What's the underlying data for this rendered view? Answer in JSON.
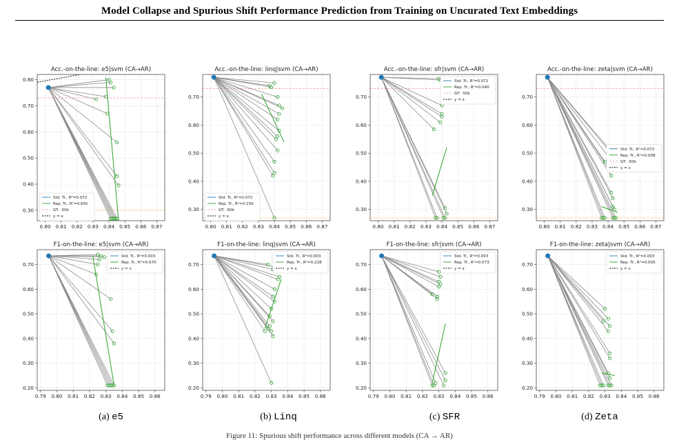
{
  "header": {
    "title": "Model Collapse and Spurious Shift Performance Prediction from Training on Uncurated Text Embeddings"
  },
  "figure": {
    "captions": [
      {
        "label": "(a)",
        "model": "e5"
      },
      {
        "label": "(b)",
        "model": "Linq"
      },
      {
        "label": "(c)",
        "model": "SFR"
      },
      {
        "label": "(d)",
        "model": "Zeta"
      }
    ],
    "figure_caption": "Figure 11: Spurious shift performance across different models (CA → AR)"
  },
  "colors": {
    "std": "#1f77b4",
    "rep": "#2ca02c",
    "gt": "#f4a6a6",
    "gt2": "#fbd6a8",
    "line": "#8c8c8c"
  },
  "chart_data": [
    {
      "type": "line",
      "title": "Acc.-on-the-line: e5|svm  (CA→AR)",
      "xlim": [
        0.795,
        0.875
      ],
      "ylim": [
        0.26,
        0.82
      ],
      "xticks": [
        "0.80",
        "0.81",
        "0.82",
        "0.83",
        "0.84",
        "0.85",
        "0.86",
        "0.87"
      ],
      "yticks": [
        "0.30",
        "0.40",
        "0.50",
        "0.60",
        "0.70",
        "0.80"
      ],
      "legend": [
        "Std. Tr., R²=0.072",
        "Rep. Tr., R²=0.691",
        "GT: -50k",
        "y = x"
      ],
      "legend_pos": "bottom-left",
      "gt": 0.73,
      "gt2": 0.3,
      "origin": [
        0.802,
        0.77
      ],
      "ends": [
        [
          0.84,
          0.8
        ],
        [
          0.841,
          0.79
        ],
        [
          0.843,
          0.77
        ],
        [
          0.832,
          0.725
        ],
        [
          0.838,
          0.735
        ],
        [
          0.839,
          0.67
        ],
        [
          0.845,
          0.56
        ],
        [
          0.845,
          0.43
        ],
        [
          0.846,
          0.395
        ],
        [
          0.842,
          0.268
        ],
        [
          0.843,
          0.268
        ],
        [
          0.844,
          0.268
        ],
        [
          0.845,
          0.268
        ],
        [
          0.843,
          0.268
        ],
        [
          0.842,
          0.268
        ],
        [
          0.841,
          0.268
        ],
        [
          0.844,
          0.268
        ],
        [
          0.845,
          0.268
        ]
      ],
      "rep": [
        [
          0.838,
          0.81
        ],
        [
          0.846,
          0.26
        ]
      ],
      "yx": [
        [
          0.795,
          0.79
        ],
        [
          0.84,
          0.84
        ]
      ]
    },
    {
      "type": "line",
      "title": "Acc.-on-the-line: linq|svm  (CA→AR)",
      "xlim": [
        0.795,
        0.875
      ],
      "ylim": [
        0.26,
        0.78
      ],
      "xticks": [
        "0.80",
        "0.81",
        "0.82",
        "0.83",
        "0.84",
        "0.85",
        "0.86",
        "0.87"
      ],
      "yticks": [
        "0.30",
        "0.40",
        "0.50",
        "0.60",
        "0.70"
      ],
      "legend": [
        "Std. Tr., R²=0.072",
        "Rep. Tr., R²=0.150",
        "GT: -50k",
        "y = x"
      ],
      "legend_pos": "bottom-left",
      "gt": 0.73,
      "gt2": 0.27,
      "origin": [
        0.802,
        0.77
      ],
      "ends": [
        [
          0.837,
          0.74
        ],
        [
          0.838,
          0.735
        ],
        [
          0.84,
          0.75
        ],
        [
          0.842,
          0.7
        ],
        [
          0.843,
          0.67
        ],
        [
          0.845,
          0.66
        ],
        [
          0.843,
          0.64
        ],
        [
          0.842,
          0.62
        ],
        [
          0.843,
          0.58
        ],
        [
          0.842,
          0.56
        ],
        [
          0.841,
          0.55
        ],
        [
          0.842,
          0.51
        ],
        [
          0.84,
          0.47
        ],
        [
          0.84,
          0.43
        ],
        [
          0.839,
          0.42
        ],
        [
          0.84,
          0.27
        ]
      ],
      "rep": [
        [
          0.832,
          0.71
        ],
        [
          0.846,
          0.54
        ]
      ]
    },
    {
      "type": "line",
      "title": "Acc.-on-the-line: sfr|svm  (CA→AR)",
      "xlim": [
        0.795,
        0.875
      ],
      "ylim": [
        0.26,
        0.78
      ],
      "xticks": [
        "0.80",
        "0.81",
        "0.82",
        "0.83",
        "0.84",
        "0.85",
        "0.86",
        "0.87"
      ],
      "yticks": [
        "0.30",
        "0.40",
        "0.50",
        "0.60",
        "0.70"
      ],
      "legend": [
        "Std. Tr., R²=0.072",
        "Rep. Tr., R²=0.040",
        "GT: -50k",
        "y = x"
      ],
      "legend_pos": "top-right",
      "gt": 0.73,
      "gt2": 0.27,
      "origin": [
        0.802,
        0.77
      ],
      "ends": [
        [
          0.838,
          0.765
        ],
        [
          0.839,
          0.76
        ],
        [
          0.84,
          0.67
        ],
        [
          0.84,
          0.64
        ],
        [
          0.84,
          0.63
        ],
        [
          0.839,
          0.61
        ],
        [
          0.835,
          0.585
        ],
        [
          0.842,
          0.305
        ],
        [
          0.843,
          0.285
        ],
        [
          0.842,
          0.27
        ],
        [
          0.841,
          0.27
        ],
        [
          0.836,
          0.27
        ],
        [
          0.837,
          0.27
        ]
      ],
      "rep": [
        [
          0.834,
          0.35
        ],
        [
          0.843,
          0.52
        ]
      ]
    },
    {
      "type": "line",
      "title": "Acc.-on-the-line: zeta|svm  (CA→AR)",
      "xlim": [
        0.795,
        0.875
      ],
      "ylim": [
        0.26,
        0.78
      ],
      "xticks": [
        "0.80",
        "0.81",
        "0.82",
        "0.83",
        "0.84",
        "0.85",
        "0.86",
        "0.87"
      ],
      "yticks": [
        "0.30",
        "0.40",
        "0.50",
        "0.60",
        "0.70"
      ],
      "legend": [
        "Std. Tr., R²=0.072",
        "Rep. Tr., R²=0.008",
        "GT: -50k",
        "y = x"
      ],
      "legend_pos": "middle-right",
      "gt": 0.73,
      "gt2": 0.27,
      "origin": [
        0.802,
        0.77
      ],
      "ends": [
        [
          0.84,
          0.52
        ],
        [
          0.842,
          0.5
        ],
        [
          0.838,
          0.47
        ],
        [
          0.842,
          0.475
        ],
        [
          0.841,
          0.44
        ],
        [
          0.842,
          0.42
        ],
        [
          0.842,
          0.36
        ],
        [
          0.843,
          0.34
        ],
        [
          0.843,
          0.31
        ],
        [
          0.844,
          0.3
        ],
        [
          0.843,
          0.27
        ],
        [
          0.844,
          0.27
        ],
        [
          0.845,
          0.27
        ],
        [
          0.837,
          0.27
        ],
        [
          0.838,
          0.27
        ],
        [
          0.836,
          0.27
        ]
      ],
      "rep": [
        [
          0.836,
          0.31
        ],
        [
          0.846,
          0.29
        ]
      ]
    },
    {
      "type": "line",
      "title": "F1-on-the-line: e5|svm  (CA→AR)",
      "xlim": [
        0.788,
        0.866
      ],
      "ylim": [
        0.19,
        0.76
      ],
      "xticks": [
        "0.79",
        "0.80",
        "0.81",
        "0.82",
        "0.83",
        "0.84",
        "0.85",
        "0.86"
      ],
      "yticks": [
        "0.20",
        "0.30",
        "0.40",
        "0.50",
        "0.60",
        "0.70"
      ],
      "legend": [
        "Std. Tr., R²=0.003",
        "Rep. Tr., R²=0.670",
        "y = x"
      ],
      "legend_pos": "top-right",
      "origin": [
        0.795,
        0.735
      ],
      "ends": [
        [
          0.825,
          0.74
        ],
        [
          0.827,
          0.735
        ],
        [
          0.829,
          0.73
        ],
        [
          0.826,
          0.72
        ],
        [
          0.825,
          0.7
        ],
        [
          0.824,
          0.66
        ],
        [
          0.833,
          0.56
        ],
        [
          0.834,
          0.43
        ],
        [
          0.835,
          0.38
        ],
        [
          0.832,
          0.21
        ],
        [
          0.833,
          0.21
        ],
        [
          0.834,
          0.21
        ],
        [
          0.835,
          0.21
        ],
        [
          0.831,
          0.21
        ]
      ],
      "rep": [
        [
          0.822,
          0.735
        ],
        [
          0.835,
          0.21
        ]
      ]
    },
    {
      "type": "line",
      "title": "F1-on-the-line: linq|svm  (CA→AR)",
      "xlim": [
        0.788,
        0.866
      ],
      "ylim": [
        0.19,
        0.76
      ],
      "xticks": [
        "0.79",
        "0.80",
        "0.81",
        "0.82",
        "0.83",
        "0.84",
        "0.85",
        "0.86"
      ],
      "yticks": [
        "0.20",
        "0.30",
        "0.40",
        "0.50",
        "0.60",
        "0.70"
      ],
      "legend": [
        "Std. Tr., R²=0.003",
        "Rep. Tr., R²=0.228",
        "y = x"
      ],
      "legend_pos": "top-right",
      "origin": [
        0.795,
        0.735
      ],
      "ends": [
        [
          0.828,
          0.7
        ],
        [
          0.831,
          0.68
        ],
        [
          0.832,
          0.69
        ],
        [
          0.834,
          0.64
        ],
        [
          0.835,
          0.65
        ],
        [
          0.832,
          0.6
        ],
        [
          0.831,
          0.57
        ],
        [
          0.832,
          0.55
        ],
        [
          0.83,
          0.52
        ],
        [
          0.829,
          0.49
        ],
        [
          0.831,
          0.47
        ],
        [
          0.829,
          0.45
        ],
        [
          0.828,
          0.44
        ],
        [
          0.83,
          0.43
        ],
        [
          0.831,
          0.41
        ],
        [
          0.826,
          0.43
        ],
        [
          0.83,
          0.22
        ]
      ],
      "rep": [
        [
          0.826,
          0.44
        ],
        [
          0.836,
          0.64
        ]
      ]
    },
    {
      "type": "line",
      "title": "F1-on-the-line: sfr|svm  (CA→AR)",
      "xlim": [
        0.788,
        0.866
      ],
      "ylim": [
        0.19,
        0.76
      ],
      "xticks": [
        "0.79",
        "0.80",
        "0.81",
        "0.82",
        "0.83",
        "0.84",
        "0.85",
        "0.86"
      ],
      "yticks": [
        "0.20",
        "0.30",
        "0.40",
        "0.50",
        "0.60",
        "0.70"
      ],
      "legend": [
        "Std. Tr., R²=0.003",
        "Rep. Tr., R²=0.073",
        "y = x"
      ],
      "legend_pos": "top-right",
      "origin": [
        0.795,
        0.735
      ],
      "ends": [
        [
          0.83,
          0.67
        ],
        [
          0.831,
          0.65
        ],
        [
          0.83,
          0.63
        ],
        [
          0.831,
          0.62
        ],
        [
          0.83,
          0.61
        ],
        [
          0.829,
          0.57
        ],
        [
          0.829,
          0.56
        ],
        [
          0.826,
          0.58
        ],
        [
          0.834,
          0.26
        ],
        [
          0.834,
          0.23
        ],
        [
          0.833,
          0.21
        ],
        [
          0.828,
          0.22
        ],
        [
          0.827,
          0.21
        ],
        [
          0.826,
          0.21
        ]
      ],
      "rep": [
        [
          0.826,
          0.22
        ],
        [
          0.834,
          0.46
        ]
      ]
    },
    {
      "type": "line",
      "title": "F1-on-the-line: zeta|svm  (CA→AR)",
      "xlim": [
        0.788,
        0.866
      ],
      "ylim": [
        0.19,
        0.76
      ],
      "xticks": [
        "0.79",
        "0.80",
        "0.81",
        "0.82",
        "0.83",
        "0.84",
        "0.85",
        "0.86"
      ],
      "yticks": [
        "0.20",
        "0.30",
        "0.40",
        "0.50",
        "0.60",
        "0.70"
      ],
      "legend": [
        "Std. Tr., R²=0.003",
        "Rep. Tr., R²=0.005",
        "y = x"
      ],
      "legend_pos": "top-right",
      "origin": [
        0.795,
        0.735
      ],
      "ends": [
        [
          0.83,
          0.52
        ],
        [
          0.832,
          0.48
        ],
        [
          0.829,
          0.47
        ],
        [
          0.833,
          0.45
        ],
        [
          0.832,
          0.43
        ],
        [
          0.833,
          0.34
        ],
        [
          0.833,
          0.32
        ],
        [
          0.832,
          0.26
        ],
        [
          0.833,
          0.24
        ],
        [
          0.834,
          0.21
        ],
        [
          0.833,
          0.21
        ],
        [
          0.832,
          0.21
        ],
        [
          0.828,
          0.21
        ],
        [
          0.827,
          0.21
        ],
        [
          0.829,
          0.21
        ]
      ],
      "rep": [
        [
          0.828,
          0.26
        ],
        [
          0.836,
          0.25
        ]
      ]
    }
  ]
}
